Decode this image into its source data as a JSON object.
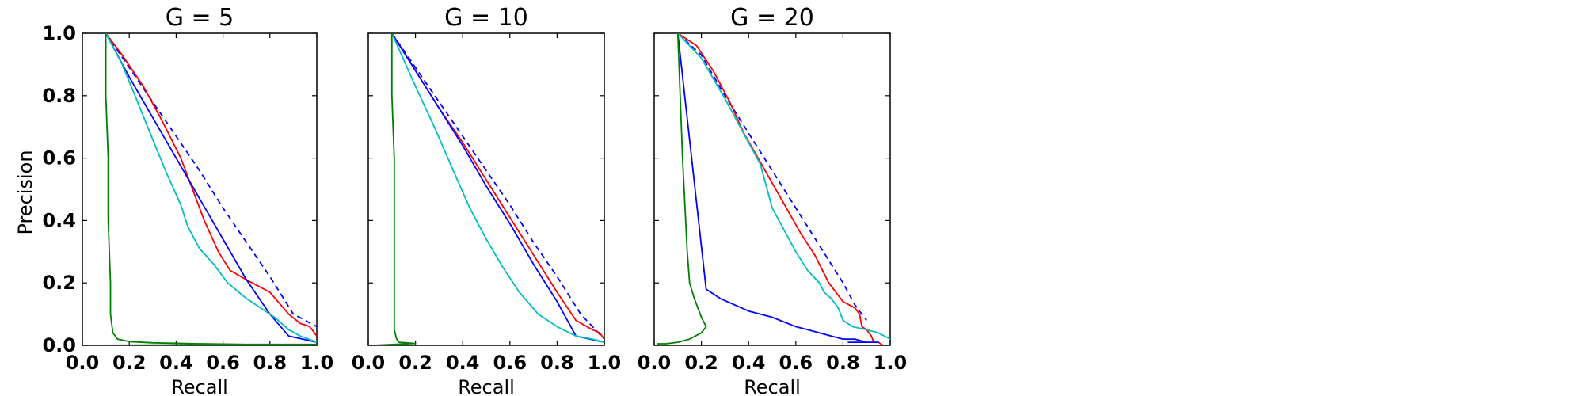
{
  "chart_data": [
    {
      "type": "line",
      "title": "G = 5",
      "xlabel": "Recall",
      "ylabel": "Precision",
      "xlim": [
        0.0,
        1.0
      ],
      "ylim": [
        0.0,
        1.0
      ],
      "xticks": [
        "0.0",
        "0.2",
        "0.4",
        "0.6",
        "0.8",
        "1.0"
      ],
      "yticks": [
        "0.0",
        "0.2",
        "0.4",
        "0.6",
        "0.8",
        "1.0"
      ],
      "grid": false,
      "series": [
        {
          "color": "#0000ff",
          "style": "dashed",
          "x": [
            0.1,
            0.2,
            0.3,
            0.4,
            0.5,
            0.6,
            0.7,
            0.8,
            0.9,
            1.0
          ],
          "y": [
            1.0,
            0.89,
            0.78,
            0.67,
            0.56,
            0.44,
            0.33,
            0.22,
            0.1,
            0.06
          ]
        },
        {
          "color": "#ff0000",
          "style": "solid",
          "x": [
            0.1,
            0.17,
            0.26,
            0.34,
            0.42,
            0.47,
            0.52,
            0.58,
            0.63,
            0.7,
            0.8,
            0.88,
            0.93,
            0.97,
            1.0
          ],
          "y": [
            1.0,
            0.93,
            0.83,
            0.72,
            0.6,
            0.5,
            0.4,
            0.3,
            0.24,
            0.21,
            0.17,
            0.1,
            0.07,
            0.06,
            0.03
          ]
        },
        {
          "color": "#0000ff",
          "style": "solid",
          "x": [
            0.1,
            0.2,
            0.3,
            0.4,
            0.5,
            0.6,
            0.7,
            0.8,
            0.88,
            1.0
          ],
          "y": [
            1.0,
            0.86,
            0.73,
            0.6,
            0.47,
            0.34,
            0.21,
            0.1,
            0.03,
            0.01
          ]
        },
        {
          "color": "#00bfbf",
          "style": "solid",
          "x": [
            0.1,
            0.17,
            0.23,
            0.3,
            0.36,
            0.42,
            0.45,
            0.5,
            0.56,
            0.62,
            0.7,
            0.76,
            0.82,
            0.88,
            0.93,
            1.0
          ],
          "y": [
            1.0,
            0.9,
            0.79,
            0.66,
            0.55,
            0.45,
            0.38,
            0.31,
            0.26,
            0.2,
            0.15,
            0.12,
            0.09,
            0.05,
            0.03,
            0.01
          ]
        },
        {
          "color": "#008000",
          "style": "solid",
          "x": [
            0.1,
            0.1,
            0.11,
            0.11,
            0.12,
            0.12,
            0.13,
            0.15,
            0.2,
            0.3,
            0.5,
            0.7,
            1.0,
            0.02,
            0.45,
            1.0
          ],
          "y": [
            1.0,
            0.8,
            0.6,
            0.4,
            0.2,
            0.1,
            0.04,
            0.02,
            0.012,
            0.008,
            0.005,
            0.003,
            0.003,
            0.0,
            0.0,
            0.0
          ]
        }
      ]
    },
    {
      "type": "line",
      "title": "G = 10",
      "xlabel": "Recall",
      "ylabel": "",
      "xlim": [
        0.0,
        1.0
      ],
      "ylim": [
        0.0,
        1.0
      ],
      "xticks": [
        "0.0",
        "0.2",
        "0.4",
        "0.6",
        "0.8",
        "1.0"
      ],
      "yticks": [],
      "grid": false,
      "series": [
        {
          "color": "#0000ff",
          "style": "dashed",
          "x": [
            0.1,
            0.2,
            0.3,
            0.4,
            0.5,
            0.6,
            0.7,
            0.8,
            0.9,
            1.0
          ],
          "y": [
            1.0,
            0.89,
            0.78,
            0.67,
            0.56,
            0.45,
            0.33,
            0.22,
            0.1,
            0.02
          ]
        },
        {
          "color": "#ff0000",
          "style": "solid",
          "x": [
            0.1,
            0.2,
            0.3,
            0.4,
            0.5,
            0.6,
            0.7,
            0.8,
            0.88,
            0.95,
            0.98,
            1.0
          ],
          "y": [
            1.0,
            0.88,
            0.76,
            0.65,
            0.53,
            0.41,
            0.29,
            0.17,
            0.08,
            0.05,
            0.04,
            0.02
          ]
        },
        {
          "color": "#0000ff",
          "style": "solid",
          "x": [
            0.1,
            0.2,
            0.3,
            0.4,
            0.5,
            0.6,
            0.7,
            0.8,
            0.88,
            1.0
          ],
          "y": [
            1.0,
            0.88,
            0.76,
            0.64,
            0.51,
            0.39,
            0.26,
            0.14,
            0.03,
            0.01
          ]
        },
        {
          "color": "#00bfbf",
          "style": "solid",
          "x": [
            0.1,
            0.2,
            0.28,
            0.36,
            0.43,
            0.5,
            0.57,
            0.64,
            0.72,
            0.8,
            0.88,
            0.95,
            1.0
          ],
          "y": [
            1.0,
            0.83,
            0.7,
            0.56,
            0.44,
            0.34,
            0.25,
            0.17,
            0.1,
            0.06,
            0.03,
            0.02,
            0.01
          ]
        },
        {
          "color": "#008000",
          "style": "solid",
          "x": [
            0.1,
            0.1,
            0.11,
            0.11,
            0.11,
            0.11,
            0.12,
            0.13,
            0.16,
            0.2,
            0.02,
            0.11
          ],
          "y": [
            1.0,
            0.8,
            0.6,
            0.4,
            0.2,
            0.05,
            0.02,
            0.01,
            0.008,
            0.006,
            0.0,
            0.0
          ]
        }
      ]
    },
    {
      "type": "line",
      "title": "G = 20",
      "xlabel": "Recall",
      "ylabel": "",
      "xlim": [
        0.0,
        1.0
      ],
      "ylim": [
        0.0,
        1.0
      ],
      "xticks": [
        "0.0",
        "0.2",
        "0.4",
        "0.6",
        "0.8",
        "1.0"
      ],
      "yticks": [],
      "grid": false,
      "series": [
        {
          "color": "#0000ff",
          "style": "dashed",
          "x": [
            0.1,
            0.2,
            0.3,
            0.4,
            0.5,
            0.6,
            0.7,
            0.8,
            0.85,
            0.9
          ],
          "y": [
            1.0,
            0.93,
            0.8,
            0.68,
            0.56,
            0.44,
            0.32,
            0.2,
            0.13,
            0.08
          ]
        },
        {
          "color": "#ff0000",
          "style": "solid",
          "x": [
            0.1,
            0.18,
            0.25,
            0.32,
            0.38,
            0.44,
            0.5,
            0.56,
            0.62,
            0.68,
            0.74,
            0.8,
            0.85,
            0.87,
            0.88,
            0.9,
            0.92,
            0.93,
            0.95,
            0.97,
            0.8
          ],
          "y": [
            1.0,
            0.96,
            0.88,
            0.78,
            0.68,
            0.6,
            0.52,
            0.44,
            0.36,
            0.29,
            0.2,
            0.14,
            0.12,
            0.1,
            0.06,
            0.05,
            0.03,
            0.01,
            0.01,
            0.0,
            0.0
          ]
        },
        {
          "color": "#0000ff",
          "style": "solid",
          "x": [
            0.1,
            0.22,
            0.28,
            0.4,
            0.5,
            0.6,
            0.65,
            0.7,
            0.75,
            0.8,
            0.85,
            0.9,
            0.95,
            0.82
          ],
          "y": [
            1.0,
            0.18,
            0.15,
            0.11,
            0.09,
            0.06,
            0.05,
            0.04,
            0.03,
            0.02,
            0.02,
            0.01,
            0.01,
            0.01
          ]
        },
        {
          "color": "#00bfbf",
          "style": "solid",
          "x": [
            0.1,
            0.2,
            0.3,
            0.4,
            0.45,
            0.5,
            0.55,
            0.6,
            0.65,
            0.7,
            0.72,
            0.75,
            0.78,
            0.8,
            0.84,
            0.9,
            0.95,
            1.0
          ],
          "y": [
            1.0,
            0.92,
            0.79,
            0.65,
            0.58,
            0.44,
            0.37,
            0.3,
            0.24,
            0.2,
            0.17,
            0.15,
            0.12,
            0.08,
            0.06,
            0.05,
            0.04,
            0.02
          ]
        },
        {
          "color": "#008000",
          "style": "solid",
          "x": [
            0.1,
            0.12,
            0.14,
            0.15,
            0.17,
            0.19,
            0.2,
            0.22,
            0.2,
            0.15,
            0.1,
            0.05,
            0.01
          ],
          "y": [
            1.0,
            0.6,
            0.3,
            0.2,
            0.15,
            0.11,
            0.09,
            0.06,
            0.04,
            0.02,
            0.01,
            0.005,
            0.005
          ]
        }
      ]
    }
  ]
}
